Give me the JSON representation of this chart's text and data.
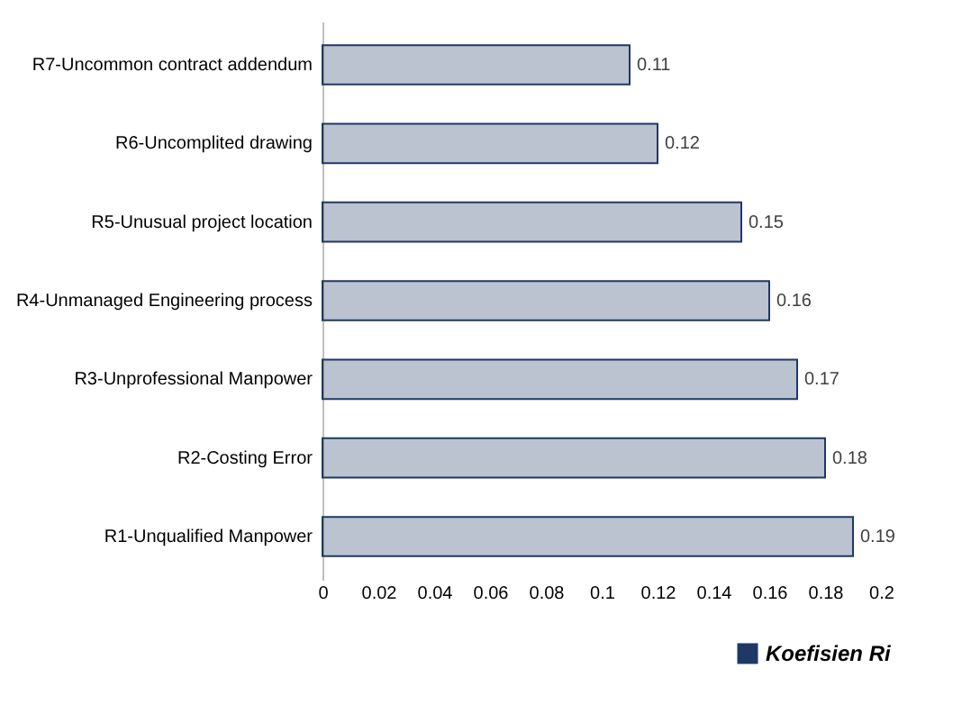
{
  "chart_data": {
    "type": "bar",
    "orientation": "horizontal",
    "categories": [
      "R7-Uncommon contract addendum",
      "R6-Uncomplited drawing",
      "R5-Unusual project location",
      "R4-Unmanaged Engineering process",
      "R3-Unprofessional Manpower",
      "R2-Costing Error",
      "R1-Unqualified Manpower"
    ],
    "series": [
      {
        "name": "Koefisien Ri",
        "color": "#1f3864",
        "values": [
          0.11,
          0.12,
          0.15,
          0.16,
          0.17,
          0.18,
          0.19
        ]
      }
    ],
    "xlim": [
      0,
      0.2
    ],
    "xticks": [
      0,
      0.02,
      0.04,
      0.06,
      0.08,
      0.1,
      0.12,
      0.14,
      0.16,
      0.18,
      0.2
    ],
    "data_labels": true,
    "grid": false,
    "legend": "bottom right"
  }
}
